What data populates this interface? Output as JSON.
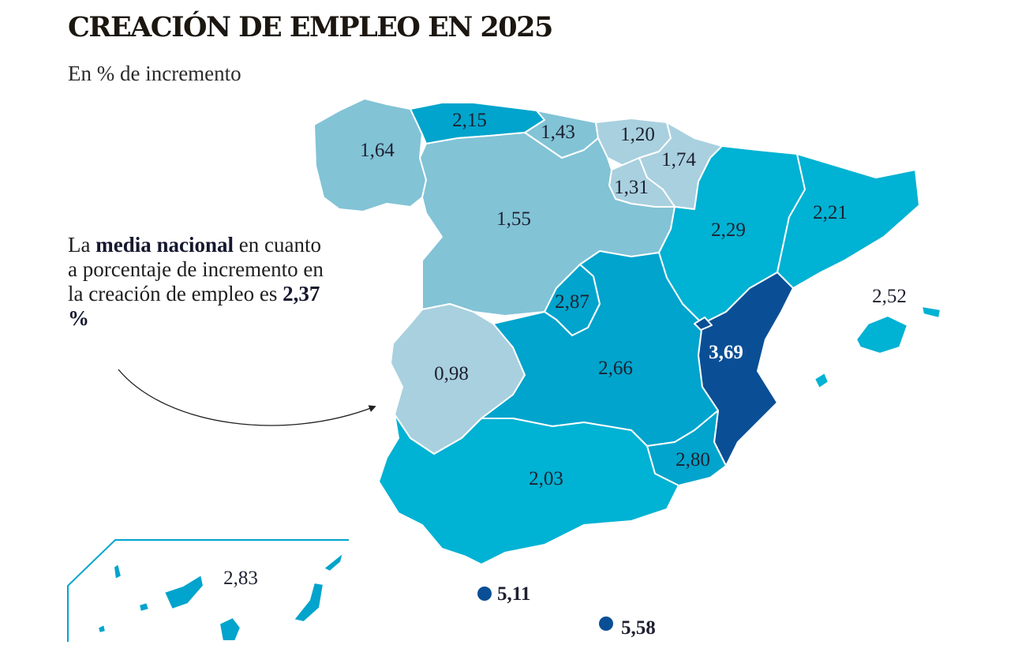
{
  "title": "CREACIÓN DE EMPLEO EN 2025",
  "subtitle": "En % de incremento",
  "note": {
    "pre": "La ",
    "highlight": "media nacional",
    "body": " en cuanto a porcentaje de incremento en la creación de empleo es ",
    "value": "2,37 %"
  },
  "colors": {
    "lightest": "#a9d0df",
    "light": "#82c3d6",
    "medium": "#00b2d3",
    "strong": "#00a4cc",
    "darkest": "#0a4f95",
    "border": "#ffffff"
  },
  "regions": {
    "galicia": "1,64",
    "asturias": "2,15",
    "cantabria": "1,43",
    "pais_vasco": "1,20",
    "navarra": "1,74",
    "la_rioja": "1,31",
    "castilla_leon": "1,55",
    "aragon": "2,29",
    "cataluna": "2,21",
    "baleares": "2,52",
    "madrid": "2,87",
    "extremadura": "0,98",
    "castilla_la_mancha": "2,66",
    "comunidad_valenciana": "3,69",
    "murcia": "2,80",
    "andalucia": "2,03",
    "canarias": "2,83",
    "ceuta": "5,11",
    "melilla": "5,58"
  }
}
